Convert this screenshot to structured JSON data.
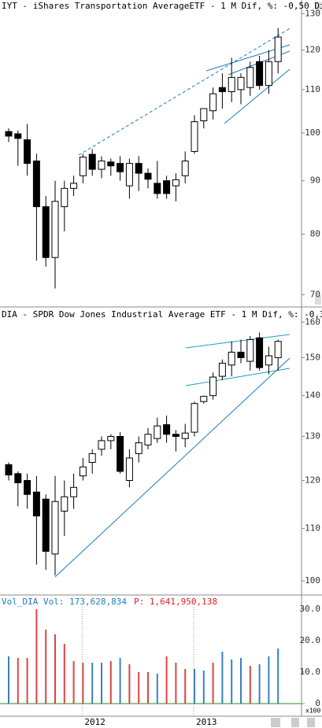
{
  "chart_data": [
    {
      "type": "candlestick",
      "title": "IYT - iShares Transportation AverageETF -  1 M Dif, %: -0,50 Di",
      "log": true,
      "ylim": [
        68.4,
        134
      ],
      "yticks": [
        70,
        80,
        90,
        100,
        110,
        120,
        130
      ],
      "series": [
        {
          "open": [
            100.3,
            99.8,
            98.5,
            94,
            85,
            76,
            85,
            88.5,
            91,
            95.4,
            92.3,
            93.8,
            93.5,
            89,
            93.5,
            91.5,
            89.5,
            90,
            89,
            91,
            96,
            102.7,
            105,
            110.5,
            109.5,
            110,
            110.5,
            117,
            111,
            117
          ],
          "high": [
            101,
            100.5,
            102,
            95.5,
            87,
            90,
            90,
            91,
            95.5,
            96.5,
            95,
            94.5,
            95,
            94.5,
            95,
            92.5,
            94,
            91,
            91.5,
            96,
            104,
            105.5,
            110.5,
            114,
            118,
            114,
            117,
            118.5,
            120,
            126
          ],
          "low": [
            98,
            93,
            91,
            75.5,
            74.5,
            71,
            80.5,
            87,
            89.5,
            91,
            90.5,
            91,
            90,
            86.5,
            88,
            88.5,
            86.5,
            86.5,
            86,
            89.5,
            95.5,
            101,
            103,
            105.5,
            107,
            106.5,
            108.5,
            110,
            109,
            114
          ],
          "close": [
            99.3,
            98.8,
            93.5,
            85,
            76,
            86,
            88.5,
            89.5,
            94.8,
            92.3,
            94,
            93,
            91.8,
            93.5,
            91.5,
            90.3,
            87.5,
            87.5,
            90.2,
            94,
            102.5,
            105.5,
            109,
            109.5,
            113,
            113,
            115.5,
            111,
            117,
            123.5
          ]
        }
      ]
    },
    {
      "type": "candlestick",
      "title": "DIA - SPDR Dow Jones Industrial Average ETF -  1 M Dif, %: -0,3",
      "log": true,
      "ylim": [
        97.6,
        164
      ],
      "yticks": [
        100,
        110,
        120,
        130,
        140,
        150,
        160
      ],
      "series": [
        {
          "open": [
            123.5,
            121.5,
            120,
            117.5,
            116,
            105,
            113.5,
            116.5,
            121,
            124,
            127,
            129,
            130,
            120,
            126,
            128,
            129.5,
            132.8,
            130.5,
            129.5,
            131,
            138.5,
            140,
            145,
            148,
            151.5,
            149,
            155.5,
            148,
            150
          ],
          "high": [
            124,
            122,
            121.5,
            121,
            117,
            121,
            120,
            121.5,
            125,
            127,
            130,
            130.5,
            131,
            127,
            130,
            132,
            134.5,
            135,
            131.5,
            133,
            138.5,
            140,
            146,
            149.5,
            154.5,
            155,
            156,
            157,
            153,
            155
          ],
          "low": [
            120,
            114.5,
            114,
            103,
            102,
            101,
            108.5,
            114,
            120,
            121.5,
            125.5,
            127,
            121.5,
            118.5,
            124,
            127,
            128.5,
            128.5,
            126.5,
            127.5,
            130,
            138,
            139,
            144,
            145,
            148.5,
            146.5,
            146.5,
            145.5,
            146.5
          ],
          "close": [
            121.2,
            119.5,
            117,
            112.5,
            105.5,
            115.5,
            116.5,
            118.5,
            123,
            126,
            129,
            130,
            122,
            125,
            128.5,
            130.5,
            132.5,
            130.5,
            130,
            130.8,
            138,
            139.8,
            144.8,
            148.5,
            151.5,
            150,
            155,
            147.3,
            150.5,
            154.5
          ]
        }
      ]
    },
    {
      "type": "bar",
      "title": "Vol_DIA Vol: 173,628,834",
      "subtitle": "P: 1,641,950,138",
      "unit_label": "x100",
      "ylim": [
        -4,
        34.25
      ],
      "yticks": [
        {
          "value": 30,
          "label": "30.0"
        },
        {
          "value": 20,
          "label": "20.0"
        },
        {
          "value": 10,
          "label": "10.0"
        },
        0
      ],
      "categories": [
        null,
        null,
        null,
        null,
        null,
        null,
        null,
        null,
        "2012",
        null,
        null,
        null,
        null,
        null,
        null,
        null,
        null,
        null,
        null,
        null,
        "2013",
        null,
        null,
        null,
        null,
        null,
        null,
        null,
        null,
        null
      ],
      "values": [
        15,
        14.5,
        14.5,
        30,
        23.5,
        22,
        19,
        13.5,
        13,
        13,
        13,
        13.5,
        14.5,
        12.5,
        10,
        10,
        9.5,
        15,
        13,
        11,
        11,
        10.5,
        13,
        16.5,
        14,
        14.5,
        12,
        12.5,
        15,
        17.5
      ],
      "colors": [
        "#3a7fc4",
        "#d44",
        "#d44",
        "#d44",
        "#d44",
        "#d44",
        "#d44",
        "#d44",
        "#d44",
        "#3a7fc4",
        "#3a7fc4",
        "#d44",
        "#3a7fc4",
        "#d44",
        "#d44",
        "#d44",
        "#3a7fc4",
        "#d44",
        "#d44",
        "#d44",
        "#3a7fc4",
        "#3a7fc4",
        "#d44",
        "#3a7fc4",
        "#3a7fc4",
        "#3a7fc4",
        "#d44",
        "#3a7fc4",
        "#3a7fc4",
        "#3a7fc4"
      ]
    }
  ]
}
